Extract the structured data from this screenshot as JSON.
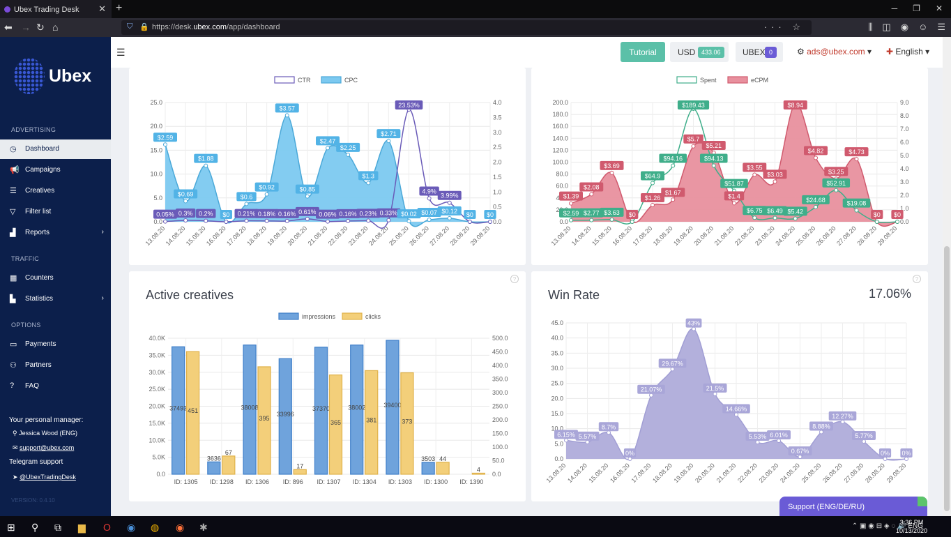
{
  "browser": {
    "tab_title": "Ubex Trading Desk",
    "url_prefix": "https://desk.",
    "url_host": "ubex.com",
    "url_path": "/app/dashboard"
  },
  "sidebar": {
    "logo": "Ubex",
    "section_advertising": "ADVERTISING",
    "section_traffic": "TRAFFIC",
    "section_options": "OPTIONS",
    "items": [
      {
        "label": "Dashboard"
      },
      {
        "label": "Campaigns"
      },
      {
        "label": "Creatives"
      },
      {
        "label": "Filter list"
      },
      {
        "label": "Reports"
      },
      {
        "label": "Counters"
      },
      {
        "label": "Statistics"
      },
      {
        "label": "Payments"
      },
      {
        "label": "Partners"
      },
      {
        "label": "FAQ"
      }
    ],
    "manager_heading": "Your personal manager:",
    "manager_name": "Jessica Wood (ENG)",
    "manager_email": "support@ubex.com",
    "telegram_heading": "Telegram support",
    "telegram_handle": "@UbexTradingDesk",
    "version": "VERSION: 0.4.10"
  },
  "topbar": {
    "tutorial": "Tutorial",
    "usd_label": "USD",
    "usd_value": "433.06",
    "ubex_label": "UBEX",
    "ubex_value": "0",
    "email": "ads@ubex.com",
    "language": "English"
  },
  "support_button": "Support (ENG/DE/RU)",
  "taskbar": {
    "lang": "ENG",
    "time": "3:36 PM",
    "date": "10/13/2020"
  },
  "chart_data": [
    {
      "type": "line",
      "id": "ctr-cpc",
      "legend": [
        "CTR",
        "CPC"
      ],
      "x": [
        "13.08.20",
        "14.08.20",
        "15.08.20",
        "16.08.20",
        "17.08.20",
        "18.08.20",
        "19.08.20",
        "20.08.20",
        "21.08.20",
        "22.08.20",
        "23.08.20",
        "24.08.20",
        "25.08.20",
        "26.08.20",
        "27.08.20",
        "28.08.20",
        "29.08.20"
      ],
      "series": [
        {
          "name": "CTR",
          "axis": "left",
          "values": [
            0.05,
            0.3,
            0.2,
            0,
            0.21,
            0.18,
            0.16,
            0.61,
            0.06,
            0.16,
            0.23,
            0.33,
            23.53,
            4.9,
            3.99,
            0,
            0
          ],
          "labels": [
            "0.05%",
            "0.3%",
            "0.2%",
            "",
            "0.21%",
            "0.18%",
            "0.16%",
            "0.61%",
            "0.06%",
            "0.16%",
            "0.23%",
            "0.33%",
            "23.53%",
            "4.9%",
            "3.99%",
            "",
            ""
          ]
        },
        {
          "name": "CPC",
          "axis": "right",
          "values": [
            2.59,
            0.69,
            1.88,
            0,
            0.6,
            0.92,
            3.57,
            0.85,
            2.47,
            2.25,
            1.3,
            2.71,
            0.02,
            0.07,
            0.12,
            0,
            0
          ],
          "labels": [
            "$2.59",
            "$0.69",
            "$1.88",
            "$0",
            "$0.6",
            "$0.92",
            "$3.57",
            "$0.85",
            "$2.47",
            "$2.25",
            "$1.3",
            "$2.71",
            "$0.02",
            "$0.07",
            "$0.12",
            "$0",
            "$0"
          ]
        }
      ],
      "ylim_left": [
        0,
        25
      ],
      "yticks_left": [
        "0.0",
        "5.0",
        "10.0",
        "15.0",
        "20.0",
        "25.0"
      ],
      "ylim_right": [
        0,
        4
      ],
      "yticks_right": [
        "0.0",
        "0.5",
        "1.0",
        "1.5",
        "2.0",
        "2.5",
        "3.0",
        "3.5",
        "4.0"
      ]
    },
    {
      "type": "line",
      "id": "spent-ecpm",
      "legend": [
        "Spent",
        "eCPM"
      ],
      "x": [
        "13.08.20",
        "14.08.20",
        "15.08.20",
        "16.08.20",
        "17.08.20",
        "18.08.20",
        "19.08.20",
        "20.08.20",
        "21.08.20",
        "22.08.20",
        "23.08.20",
        "24.08.20",
        "25.08.20",
        "26.08.20",
        "27.08.20",
        "28.08.20",
        "29.08.20"
      ],
      "series": [
        {
          "name": "Spent",
          "axis": "left",
          "values": [
            2.59,
            2.77,
            3.63,
            0,
            64.9,
            94.16,
            189.43,
            94.13,
            51.87,
            6.75,
            6.49,
            5.42,
            24.68,
            52.91,
            19.08,
            0,
            0
          ],
          "labels": [
            "$2.59",
            "$2.77",
            "$3.63",
            "",
            "$64.9",
            "$94.16",
            "$189.43",
            "$94.13",
            "$51.87",
            "$6.75",
            "$6.49",
            "$5.42",
            "$24.68",
            "$52.91",
            "$19.08",
            "",
            ""
          ]
        },
        {
          "name": "eCPM",
          "axis": "right",
          "values": [
            1.39,
            2.08,
            3.69,
            0,
            1.26,
            1.67,
            5.7,
            5.21,
            1.4,
            3.55,
            3.03,
            8.94,
            4.82,
            3.25,
            4.73,
            0,
            0
          ],
          "labels": [
            "$1.39",
            "$2.08",
            "$3.69",
            "$0",
            "$1.26",
            "$1.67",
            "$5.7",
            "$5.21",
            "$1.4",
            "$3.55",
            "$3.03",
            "$8.94",
            "$4.82",
            "$3.25",
            "$4.73",
            "$0",
            "$0"
          ]
        }
      ],
      "ylim_left": [
        0,
        200
      ],
      "yticks_left": [
        "0.0",
        "20.0",
        "40.0",
        "60.0",
        "80.0",
        "100.0",
        "120.0",
        "140.0",
        "160.0",
        "180.0",
        "200.0"
      ],
      "ylim_right": [
        0,
        9
      ],
      "yticks_right": [
        "0.0",
        "1.0",
        "2.0",
        "3.0",
        "4.0",
        "5.0",
        "6.0",
        "7.0",
        "8.0",
        "9.0"
      ]
    },
    {
      "type": "bar",
      "id": "active-creatives",
      "title": "Active creatives",
      "legend": [
        "impressions",
        "clicks"
      ],
      "categories": [
        "ID: 1305",
        "ID: 1298",
        "ID: 1306",
        "ID: 896",
        "ID: 1307",
        "ID: 1304",
        "ID: 1303",
        "ID: 1300",
        "ID: 1390"
      ],
      "series": [
        {
          "name": "impressions",
          "axis": "left",
          "values": [
            37493,
            3636,
            38008,
            33996,
            37370,
            38002,
            39400,
            3503,
            0
          ],
          "labels": [
            "37493",
            "3636",
            "38008",
            "33996",
            "37370",
            "38002",
            "39400",
            "3503",
            ""
          ]
        },
        {
          "name": "clicks",
          "axis": "right",
          "values": [
            451,
            67,
            395,
            17,
            365,
            381,
            373,
            44,
            4
          ],
          "labels": [
            "451",
            "67",
            "395",
            "17",
            "365",
            "381",
            "373",
            "44",
            "4"
          ]
        }
      ],
      "ylim_left": [
        0,
        40000
      ],
      "yticks_left": [
        "0.0",
        "5.0K",
        "10.0K",
        "15.0K",
        "20.0K",
        "25.0K",
        "30.0K",
        "35.0K",
        "40.0K"
      ],
      "ylim_right": [
        0,
        500
      ],
      "yticks_right": [
        "0.0",
        "50.0",
        "100.0",
        "150.0",
        "200.0",
        "250.0",
        "300.0",
        "350.0",
        "400.0",
        "450.0",
        "500.0"
      ]
    },
    {
      "type": "area",
      "id": "win-rate",
      "title": "Win Rate",
      "total": "17.06%",
      "x": [
        "13.08.20",
        "14.08.20",
        "15.08.20",
        "16.08.20",
        "17.08.20",
        "18.08.20",
        "19.08.20",
        "20.08.20",
        "21.08.20",
        "22.08.20",
        "23.08.20",
        "24.08.20",
        "25.08.20",
        "26.08.20",
        "27.08.20",
        "28.08.20",
        "29.08.20"
      ],
      "series": [
        {
          "name": "Win Rate",
          "values": [
            6.15,
            5.57,
            8.7,
            0,
            21.07,
            29.67,
            43,
            21.5,
            14.66,
            5.53,
            6.01,
            0.67,
            8.88,
            12.27,
            5.77,
            0,
            0
          ],
          "labels": [
            "6.15%",
            "5.57%",
            "8.7%",
            "0%",
            "21.07%",
            "29.67%",
            "43%",
            "21.5%",
            "14.66%",
            "5.53%",
            "6.01%",
            "0.67%",
            "8.88%",
            "12.27%",
            "5.77%",
            "0%",
            "0%"
          ]
        }
      ],
      "ylim": [
        0,
        45
      ],
      "yticks": [
        "0.0",
        "5.0",
        "10.0",
        "15.0",
        "20.0",
        "25.0",
        "30.0",
        "35.0",
        "40.0",
        "45.0"
      ]
    }
  ]
}
